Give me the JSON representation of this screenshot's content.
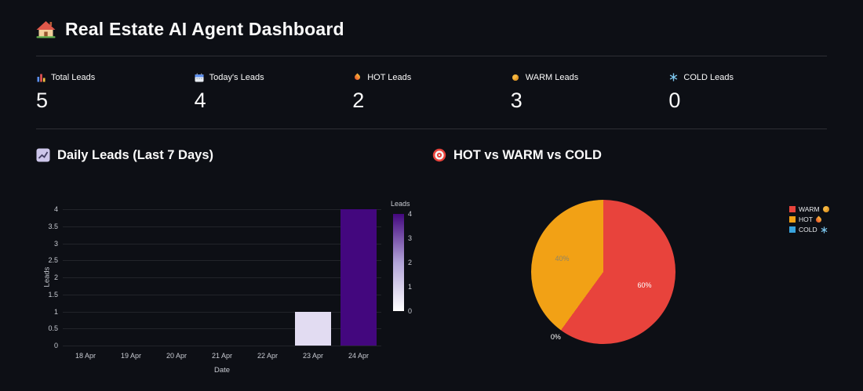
{
  "page": {
    "title": "Real Estate AI Agent Dashboard",
    "title_icon": "house-icon"
  },
  "metrics": [
    {
      "icon": "bar-chart-icon",
      "label": "Total Leads",
      "value": "5"
    },
    {
      "icon": "calendar-icon",
      "label": "Today's Leads",
      "value": "4"
    },
    {
      "icon": "fire-icon",
      "label": "HOT Leads",
      "value": "2"
    },
    {
      "icon": "moon-icon",
      "label": "WARM Leads",
      "value": "3"
    },
    {
      "icon": "snowflake-icon",
      "label": "COLD Leads",
      "value": "0"
    }
  ],
  "sections": {
    "bar": {
      "icon": "chart-increasing-icon",
      "title": "Daily Leads (Last 7 Days)"
    },
    "pie": {
      "icon": "target-icon",
      "title": "HOT vs WARM vs COLD"
    }
  },
  "chart_data": [
    {
      "type": "bar",
      "title": "Daily Leads (Last 7 Days)",
      "categories": [
        "18 Apr",
        "19 Apr",
        "20 Apr",
        "21 Apr",
        "22 Apr",
        "23 Apr",
        "24 Apr"
      ],
      "values": [
        0,
        0,
        0,
        0,
        0,
        1,
        4
      ],
      "bar_colors": [
        null,
        null,
        null,
        null,
        null,
        "#e2dcf2",
        "#43077e"
      ],
      "xlabel": "Date",
      "ylabel": "Leads",
      "ylim": [
        0,
        4
      ],
      "yticks": [
        0,
        0.5,
        1,
        1.5,
        2,
        2.5,
        3,
        3.5,
        4
      ],
      "grid": true,
      "colorbar": {
        "title": "Leads",
        "min": 0,
        "max": 4,
        "ticks": [
          0,
          1,
          2,
          3,
          4
        ],
        "gradient": [
          "#ffffff",
          "#b2a4d8",
          "#43077e"
        ]
      }
    },
    {
      "type": "pie",
      "title": "HOT vs WARM vs COLD",
      "slices": [
        {
          "name": "WARM",
          "value": 60,
          "label": "60%",
          "color": "#e8433c",
          "label_color": "#ffffff",
          "label_placement": "inside"
        },
        {
          "name": "COLD",
          "value": 0,
          "label": "0%",
          "color": "#38a3dd",
          "label_color": "#ffffff",
          "label_placement": "outside"
        },
        {
          "name": "HOT",
          "value": 40,
          "label": "40%",
          "color": "#f2a115",
          "label_color": "#8d8468",
          "label_placement": "inside"
        }
      ],
      "legend": [
        {
          "label": "WARM",
          "icon": "moon-icon",
          "color": "#e8433c"
        },
        {
          "label": "HOT",
          "icon": "fire-icon",
          "color": "#f2a115"
        },
        {
          "label": "COLD",
          "icon": "snowflake-icon",
          "color": "#38a3dd"
        }
      ],
      "legend_position": "right"
    }
  ]
}
